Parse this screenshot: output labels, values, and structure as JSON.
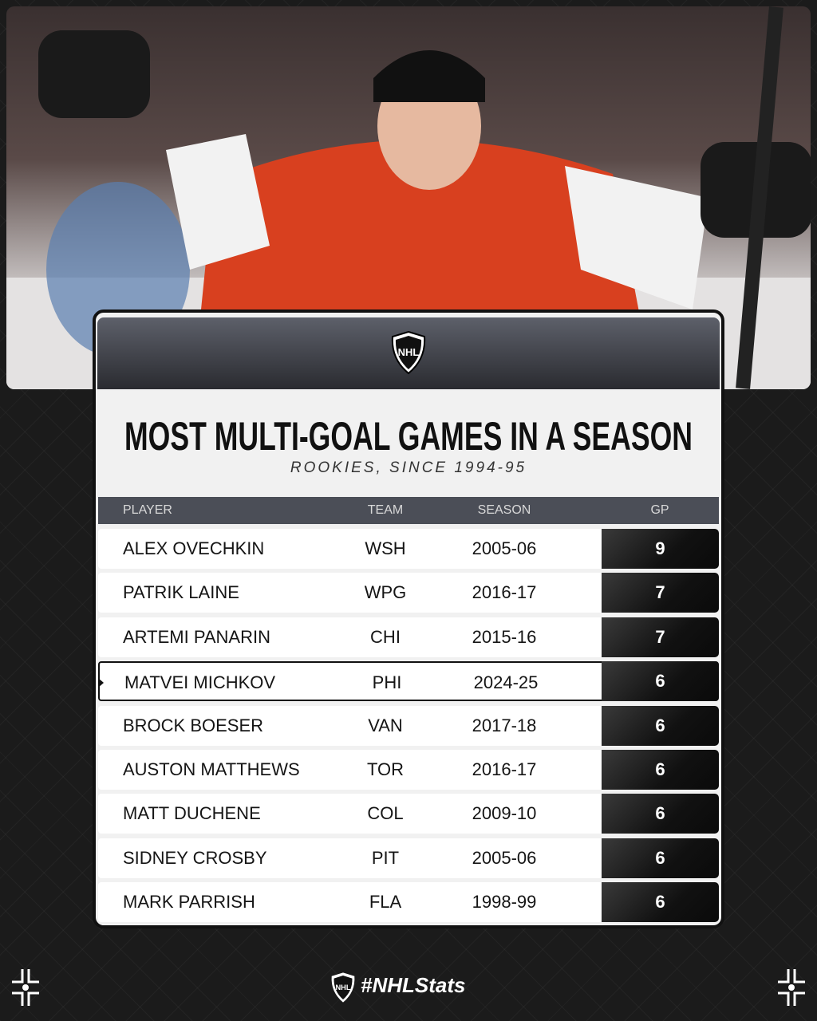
{
  "logo_text": "NHL",
  "title": "MOST MULTI-GOAL GAMES IN A SEASON",
  "subtitle": "ROOKIES, SINCE 1994-95",
  "table": {
    "headers": [
      "PLAYER",
      "TEAM",
      "SEASON",
      "GP"
    ],
    "rows": [
      [
        "ALEX OVECHKIN",
        "WSH",
        "2005-06",
        9
      ],
      [
        "PATRIK LAINE",
        "WPG",
        "2016-17",
        7
      ],
      [
        "ARTEMI PANARIN",
        "CHI",
        "2015-16",
        7
      ],
      [
        "MATVEI MICHKOV",
        "PHI",
        "2024-25",
        6
      ],
      [
        "BROCK BOESER",
        "VAN",
        "2017-18",
        6
      ],
      [
        "AUSTON MATTHEWS",
        "TOR",
        "2016-17",
        6
      ],
      [
        "MATT DUCHENE",
        "COL",
        "2009-10",
        6
      ],
      [
        "SIDNEY CROSBY",
        "PIT",
        "2005-06",
        6
      ],
      [
        "MARK PARRISH",
        "FLA",
        "1998-99",
        6
      ]
    ]
  },
  "footer": {
    "logo_text": "NHL",
    "hashtag": "#NHLStats"
  }
}
